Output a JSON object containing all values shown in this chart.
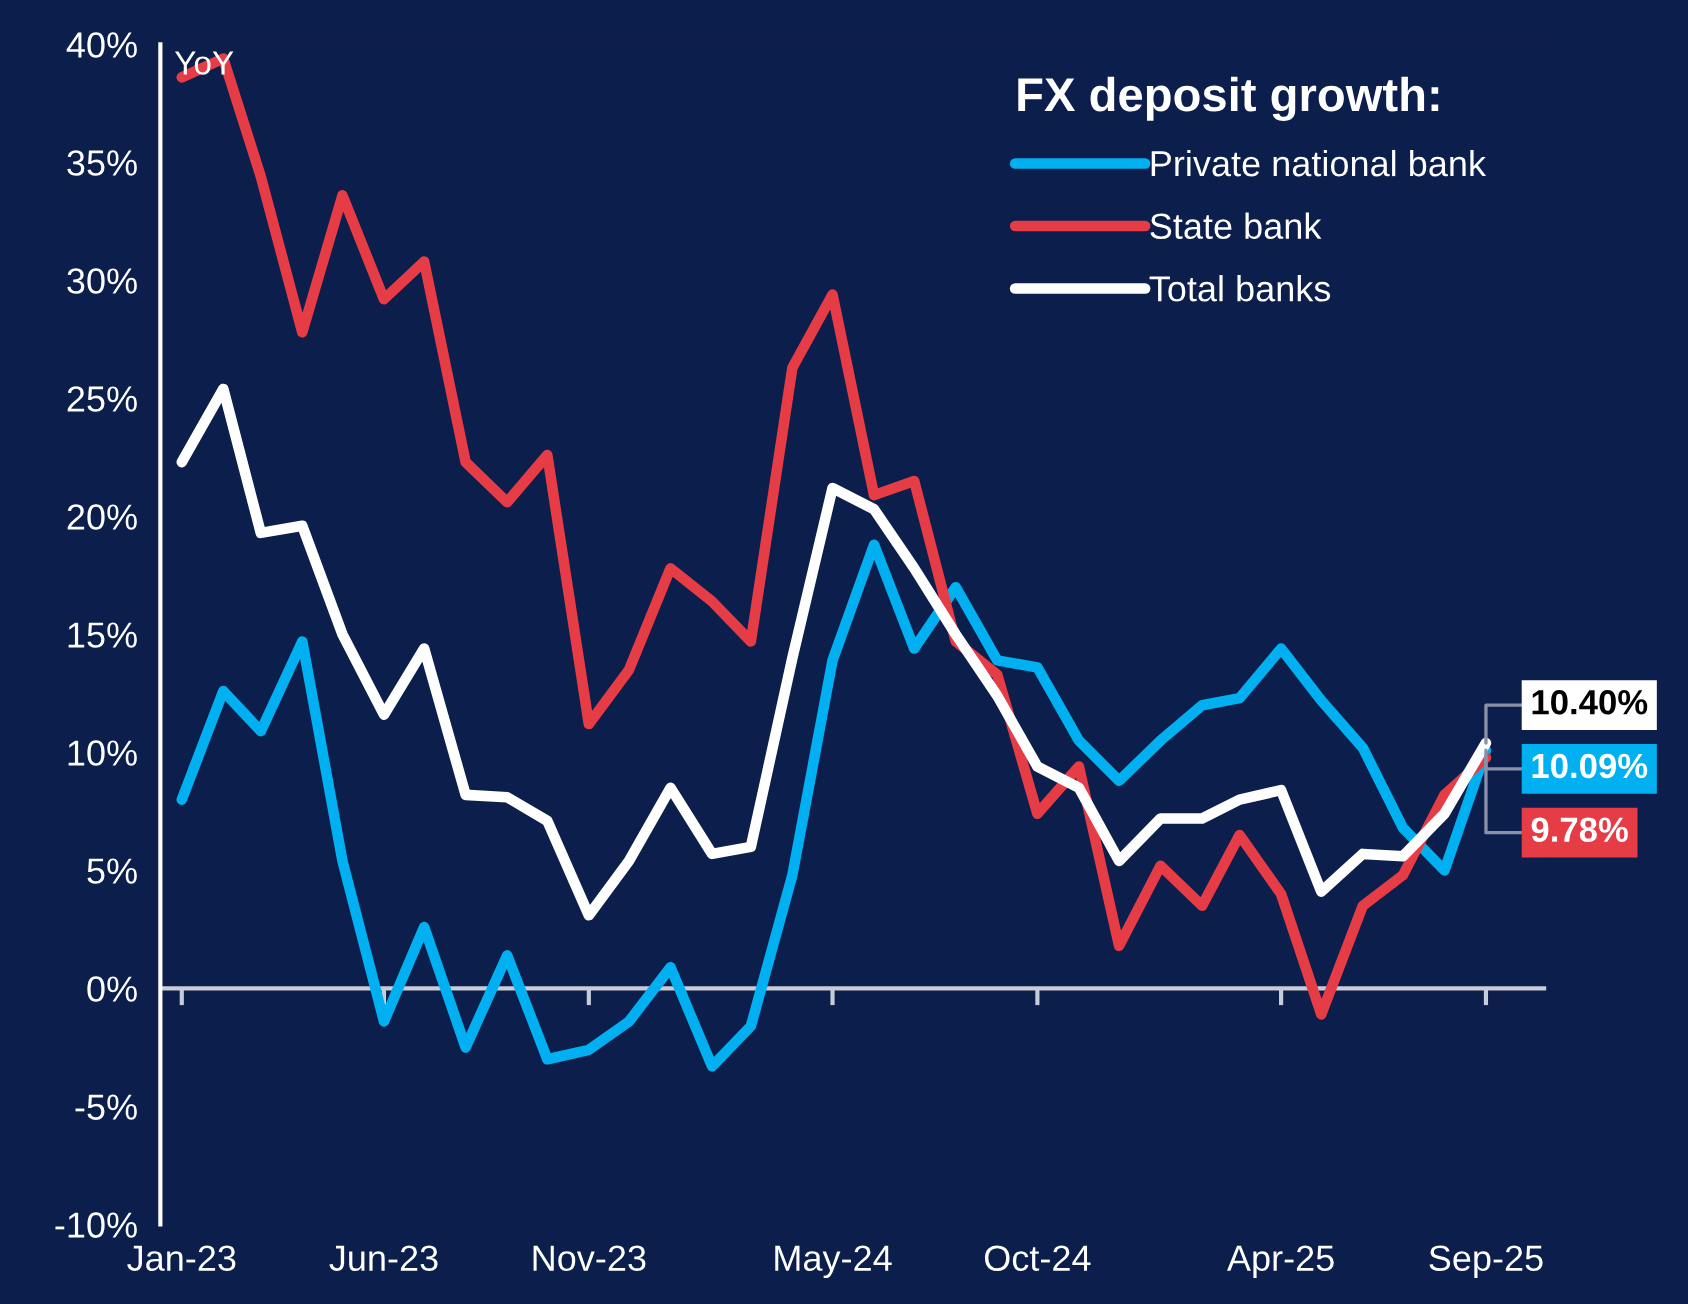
{
  "chart_data": {
    "type": "line",
    "legend_title": "FX deposit growth:",
    "ylabel": "YoY",
    "x": [
      "2023-01",
      "2023-02",
      "2023-03",
      "2023-04",
      "2023-05",
      "2023-06",
      "2023-07",
      "2023-08",
      "2023-09",
      "2023-10",
      "2023-11",
      "2023-12",
      "2024-01",
      "2024-02",
      "2024-03",
      "2024-04",
      "2024-05",
      "2024-06",
      "2024-07",
      "2024-08",
      "2024-09",
      "2024-10",
      "2024-11",
      "2024-12",
      "2025-01",
      "2025-02",
      "2025-03",
      "2025-04",
      "2025-05",
      "2025-06",
      "2025-07",
      "2025-08",
      "2025-09"
    ],
    "series": [
      {
        "name": "Private national bank",
        "color": "#00b0f0",
        "values": [
          8.0,
          12.6,
          10.9,
          14.7,
          5.4,
          -1.4,
          2.6,
          -2.5,
          1.4,
          -3.0,
          -2.6,
          -1.4,
          0.9,
          -3.3,
          -1.6,
          4.8,
          13.9,
          18.8,
          14.4,
          17.0,
          13.9,
          13.6,
          10.5,
          8.8,
          10.5,
          12.0,
          12.3,
          14.4,
          12.2,
          10.2,
          6.8,
          5.0,
          10.09
        ]
      },
      {
        "name": "State bank",
        "color": "#e63c46",
        "values": [
          38.6,
          39.4,
          34.4,
          27.8,
          33.6,
          29.2,
          30.8,
          22.3,
          20.6,
          22.6,
          11.2,
          13.5,
          17.8,
          16.4,
          14.7,
          26.3,
          29.4,
          20.9,
          21.5,
          14.7,
          13.3,
          7.4,
          9.4,
          1.8,
          5.2,
          3.5,
          6.5,
          4.0,
          -1.1,
          3.5,
          4.8,
          8.2,
          9.78
        ]
      },
      {
        "name": "Total banks",
        "color": "#ffffff",
        "values": [
          22.3,
          25.4,
          19.3,
          19.6,
          15.0,
          11.6,
          14.4,
          8.2,
          8.1,
          7.1,
          3.1,
          5.4,
          8.5,
          5.7,
          6.0,
          14.0,
          21.2,
          20.3,
          17.8,
          15.0,
          12.4,
          9.4,
          8.5,
          5.4,
          7.2,
          7.2,
          8.0,
          8.4,
          4.1,
          5.7,
          5.6,
          7.4,
          10.4
        ]
      }
    ],
    "annotations": [
      {
        "text": "10.09%",
        "x": "2025-09",
        "y": 10.09
      },
      {
        "text": "9.78%",
        "x": "2025-09",
        "y": 9.78
      },
      {
        "text": "10.40%",
        "x": "2025-09",
        "y": 10.4
      }
    ],
    "xlim": [
      "2022-12-16",
      "2025-10-16"
    ],
    "xticks": [
      {
        "value": "2023-01",
        "label": "Jan-23"
      },
      {
        "value": "2023-06",
        "label": "Jun-23"
      },
      {
        "value": "2023-11",
        "label": "Nov-23"
      },
      {
        "value": "2024-05",
        "label": "May-24"
      },
      {
        "value": "2024-10",
        "label": "Oct-24"
      },
      {
        "value": "2025-04",
        "label": "Apr-25"
      },
      {
        "value": "2025-09",
        "label": "Sep-25"
      }
    ],
    "ylim": [
      -10,
      40
    ],
    "yticks": [
      {
        "value": -10,
        "label": "-10%"
      },
      {
        "value": -5,
        "label": "-5%"
      },
      {
        "value": 0,
        "label": "0%"
      },
      {
        "value": 5,
        "label": "5%"
      },
      {
        "value": 10,
        "label": "10%"
      },
      {
        "value": 15,
        "label": "15%"
      },
      {
        "value": 20,
        "label": "20%"
      },
      {
        "value": 25,
        "label": "25%"
      },
      {
        "value": 30,
        "label": "30%"
      },
      {
        "value": 35,
        "label": "35%"
      },
      {
        "value": 40,
        "label": "40%"
      }
    ],
    "grid": false,
    "ref_lines": [
      {
        "axis": "y",
        "value": 0,
        "color": "#c8ccd8"
      }
    ],
    "legend": "top right",
    "marker": "none",
    "line_style": "solid"
  }
}
